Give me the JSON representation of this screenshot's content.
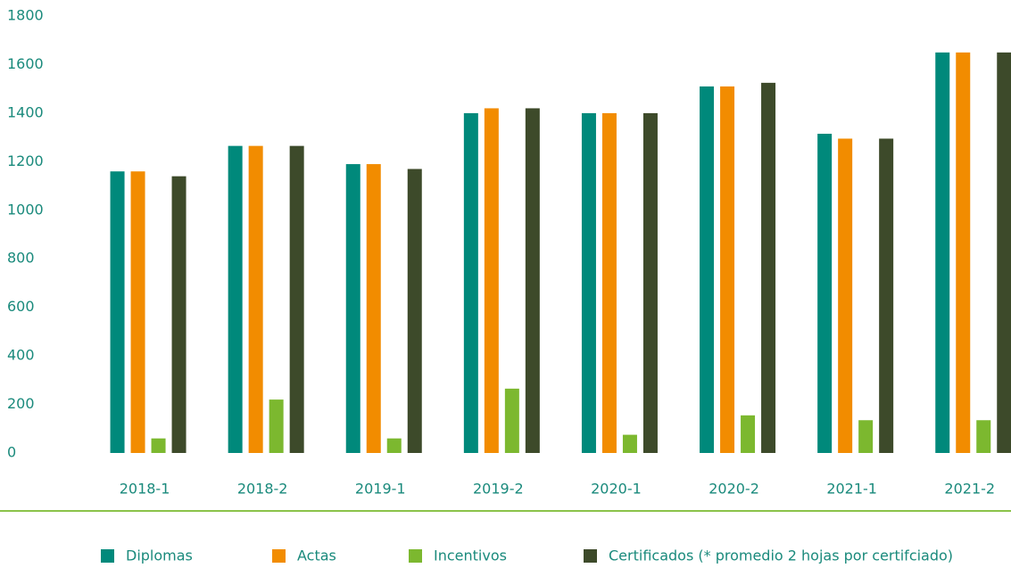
{
  "chart_data": {
    "type": "bar",
    "categories": [
      "2018-1",
      "2018-2",
      "2019-1",
      "2019-2",
      "2020-1",
      "2020-2",
      "2021-1",
      "2021-2"
    ],
    "series": [
      {
        "name": "Diplomas",
        "color": "#00897b",
        "values": [
          1160,
          1265,
          1190,
          1400,
          1400,
          1510,
          1315,
          1650
        ]
      },
      {
        "name": "Actas",
        "color": "#f28c00",
        "values": [
          1160,
          1265,
          1190,
          1420,
          1400,
          1510,
          1295,
          1650
        ]
      },
      {
        "name": "Incentivos",
        "color": "#7cb82f",
        "values": [
          60,
          220,
          60,
          265,
          75,
          155,
          135,
          135
        ]
      },
      {
        "name": "Certificados (* promedio 2 hojas por certifciado)",
        "color": "#3d4a2a",
        "values": [
          1140,
          1265,
          1170,
          1420,
          1400,
          1525,
          1295,
          1650
        ]
      }
    ],
    "ylim": [
      0,
      1800
    ],
    "yticks": [
      0,
      200,
      400,
      600,
      800,
      1000,
      1200,
      1400,
      1600,
      1800
    ],
    "grid": false
  }
}
